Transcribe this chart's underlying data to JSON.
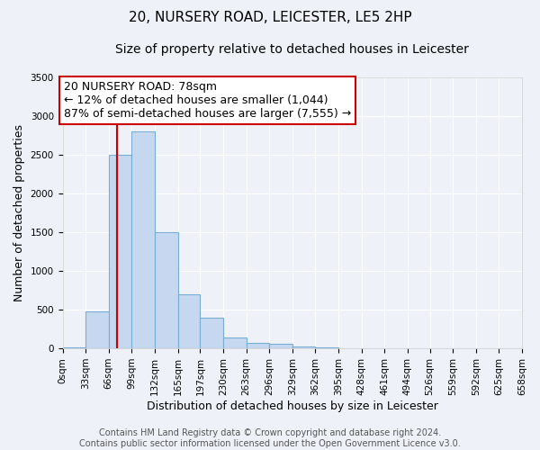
{
  "title": "20, NURSERY ROAD, LEICESTER, LE5 2HP",
  "subtitle": "Size of property relative to detached houses in Leicester",
  "xlabel": "Distribution of detached houses by size in Leicester",
  "ylabel": "Number of detached properties",
  "bin_edges": [
    0,
    33,
    66,
    99,
    132,
    165,
    197,
    230,
    263,
    296,
    329,
    362,
    395,
    428,
    461,
    494,
    526,
    559,
    592,
    625,
    658
  ],
  "bin_counts": [
    15,
    480,
    2500,
    2800,
    1500,
    700,
    400,
    140,
    70,
    55,
    30,
    10,
    0,
    0,
    0,
    0,
    0,
    0,
    0,
    0
  ],
  "bar_color": "#c5d8f0",
  "bar_edge_color": "#7aadd4",
  "vline_x": 78,
  "vline_color": "#cc0000",
  "annotation_title": "20 NURSERY ROAD: 78sqm",
  "annotation_line1": "← 12% of detached houses are smaller (1,044)",
  "annotation_line2": "87% of semi-detached houses are larger (7,555) →",
  "annotation_border_color": "#cc0000",
  "xlim": [
    0,
    658
  ],
  "ylim": [
    0,
    3500
  ],
  "yticks": [
    0,
    500,
    1000,
    1500,
    2000,
    2500,
    3000,
    3500
  ],
  "xtick_labels": [
    "0sqm",
    "33sqm",
    "66sqm",
    "99sqm",
    "132sqm",
    "165sqm",
    "197sqm",
    "230sqm",
    "263sqm",
    "296sqm",
    "329sqm",
    "362sqm",
    "395sqm",
    "428sqm",
    "461sqm",
    "494sqm",
    "526sqm",
    "559sqm",
    "592sqm",
    "625sqm",
    "658sqm"
  ],
  "footer1": "Contains HM Land Registry data © Crown copyright and database right 2024.",
  "footer2": "Contains public sector information licensed under the Open Government Licence v3.0.",
  "background_color": "#eef2f8",
  "plot_background": "#eef2f8",
  "grid_color": "#ffffff",
  "title_fontsize": 11,
  "subtitle_fontsize": 10,
  "label_fontsize": 9,
  "tick_fontsize": 7.5,
  "footer_fontsize": 7,
  "annotation_fontsize": 9
}
